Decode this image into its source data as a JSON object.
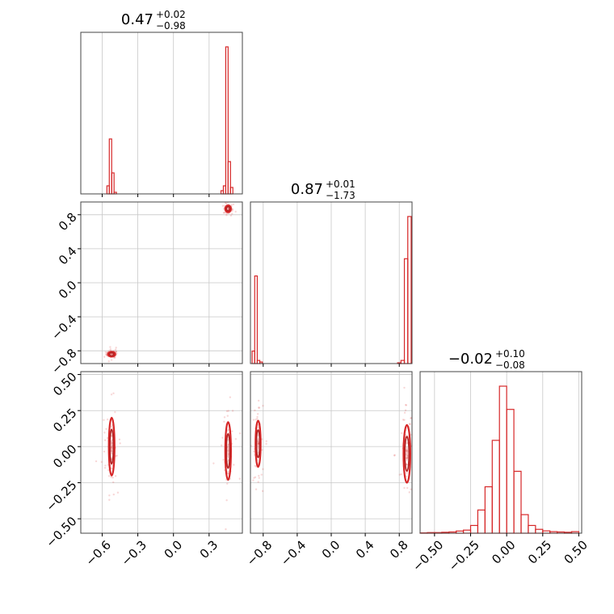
{
  "colors": {
    "series": "#d62728",
    "grid": "#c8c8c8",
    "frame": "#444444"
  },
  "chart_data": {
    "type": "corner",
    "grid": true,
    "parameters": [
      {
        "title": "0.47",
        "plus": "+0.02",
        "minus": "−0.98",
        "range": [
          -0.78,
          0.58
        ],
        "ticks": [
          -0.6,
          -0.3,
          0.0,
          0.3
        ],
        "tick_labels": [
          "−0.6",
          "−0.3",
          "0.0",
          "0.3"
        ]
      },
      {
        "title": "0.87",
        "plus": "+0.01",
        "minus": "−1.73",
        "range": [
          -0.95,
          0.95
        ],
        "ticks": [
          -0.8,
          -0.4,
          0.0,
          0.4,
          0.8
        ],
        "tick_labels": [
          "−0.8",
          "−0.4",
          "0.0",
          "0.4",
          "0.8"
        ]
      },
      {
        "title": "−0.02",
        "plus": "+0.10",
        "minus": "−0.08",
        "range": [
          -0.6,
          0.52
        ],
        "ticks": [
          -0.5,
          -0.25,
          0.0,
          0.25,
          0.5
        ],
        "tick_labels": [
          "−0.50",
          "−0.25",
          "0.00",
          "0.25",
          "0.50"
        ]
      }
    ],
    "histograms": [
      {
        "param": 0,
        "bins": [
          {
            "x0": -0.56,
            "x1": -0.54,
            "v": 0.05
          },
          {
            "x0": -0.54,
            "x1": -0.52,
            "v": 0.34
          },
          {
            "x0": -0.52,
            "x1": -0.5,
            "v": 0.13
          },
          {
            "x0": -0.5,
            "x1": -0.48,
            "v": 0.01
          },
          {
            "x0": 0.4,
            "x1": 0.42,
            "v": 0.02
          },
          {
            "x0": 0.42,
            "x1": 0.44,
            "v": 0.05
          },
          {
            "x0": 0.44,
            "x1": 0.46,
            "v": 0.91
          },
          {
            "x0": 0.46,
            "x1": 0.48,
            "v": 0.2
          },
          {
            "x0": 0.48,
            "x1": 0.5,
            "v": 0.04
          }
        ]
      },
      {
        "param": 1,
        "bins": [
          {
            "x0": -0.93,
            "x1": -0.9,
            "v": 0.08
          },
          {
            "x0": -0.9,
            "x1": -0.87,
            "v": 0.56
          },
          {
            "x0": -0.87,
            "x1": -0.84,
            "v": 0.02
          },
          {
            "x0": -0.84,
            "x1": -0.81,
            "v": 0.01
          },
          {
            "x0": 0.78,
            "x1": 0.82,
            "v": 0.005
          },
          {
            "x0": 0.82,
            "x1": 0.86,
            "v": 0.02
          },
          {
            "x0": 0.86,
            "x1": 0.9,
            "v": 0.67
          },
          {
            "x0": 0.9,
            "x1": 0.94,
            "v": 0.94
          }
        ]
      },
      {
        "param": 2,
        "bins": [
          {
            "x0": -0.6,
            "x1": -0.55,
            "v": 0.002
          },
          {
            "x0": -0.55,
            "x1": -0.5,
            "v": 0.004
          },
          {
            "x0": -0.5,
            "x1": -0.45,
            "v": 0.004
          },
          {
            "x0": -0.45,
            "x1": -0.4,
            "v": 0.006
          },
          {
            "x0": -0.4,
            "x1": -0.35,
            "v": 0.008
          },
          {
            "x0": -0.35,
            "x1": -0.3,
            "v": 0.014
          },
          {
            "x0": -0.3,
            "x1": -0.25,
            "v": 0.02
          },
          {
            "x0": -0.25,
            "x1": -0.2,
            "v": 0.05
          },
          {
            "x0": -0.2,
            "x1": -0.15,
            "v": 0.15
          },
          {
            "x0": -0.15,
            "x1": -0.1,
            "v": 0.3
          },
          {
            "x0": -0.1,
            "x1": -0.05,
            "v": 0.6
          },
          {
            "x0": -0.05,
            "x1": 0.0,
            "v": 0.95
          },
          {
            "x0": 0.0,
            "x1": 0.05,
            "v": 0.8
          },
          {
            "x0": 0.05,
            "x1": 0.1,
            "v": 0.4
          },
          {
            "x0": 0.1,
            "x1": 0.15,
            "v": 0.12
          },
          {
            "x0": 0.15,
            "x1": 0.2,
            "v": 0.05
          },
          {
            "x0": 0.2,
            "x1": 0.25,
            "v": 0.025
          },
          {
            "x0": 0.25,
            "x1": 0.3,
            "v": 0.015
          },
          {
            "x0": 0.3,
            "x1": 0.35,
            "v": 0.01
          },
          {
            "x0": 0.35,
            "x1": 0.4,
            "v": 0.008
          },
          {
            "x0": 0.4,
            "x1": 0.45,
            "v": 0.006
          },
          {
            "x0": 0.45,
            "x1": 0.5,
            "v": 0.01
          }
        ]
      }
    ],
    "pairs": [
      {
        "x_param": 0,
        "y_param": 1,
        "clusters": [
          {
            "cx": -0.52,
            "cy": -0.84,
            "sx": 0.015,
            "sy": 0.012,
            "scatter": 0.03
          },
          {
            "cx": 0.46,
            "cy": 0.87,
            "sx": 0.012,
            "sy": 0.02,
            "scatter": 0.03
          }
        ]
      },
      {
        "x_param": 0,
        "y_param": 2,
        "clusters": [
          {
            "cx": -0.52,
            "cy": 0.0,
            "sx": 0.012,
            "sy": 0.1,
            "scatter": 0.06
          },
          {
            "cx": 0.46,
            "cy": -0.03,
            "sx": 0.012,
            "sy": 0.1,
            "scatter": 0.06
          }
        ]
      },
      {
        "x_param": 1,
        "y_param": 2,
        "clusters": [
          {
            "cx": -0.86,
            "cy": 0.02,
            "sx": 0.015,
            "sy": 0.08,
            "scatter": 0.06
          },
          {
            "cx": 0.89,
            "cy": -0.05,
            "sx": 0.02,
            "sy": 0.1,
            "scatter": 0.07
          }
        ]
      }
    ]
  }
}
